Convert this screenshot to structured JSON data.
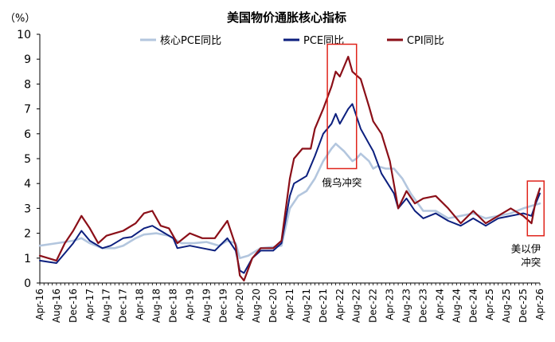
{
  "chart_data": {
    "type": "line",
    "title": "美国物价通胀核心指标",
    "ylabel": "（%）",
    "ylim": [
      0,
      10
    ],
    "yticks": [
      0,
      1,
      2,
      3,
      4,
      5,
      6,
      7,
      8,
      9,
      10
    ],
    "grid": false,
    "legend_position": "top-center",
    "x_start": "2016-04",
    "x_end": "2026-04",
    "xtick_labels": [
      "Apr-16",
      "Aug-16",
      "Dec-16",
      "Apr-17",
      "Aug-17",
      "Dec-17",
      "Apr-18",
      "Aug-18",
      "Dec-18",
      "Apr-19",
      "Aug-19",
      "Dec-19",
      "Apr-20",
      "Aug-20",
      "Dec-20",
      "Apr-21",
      "Aug-21",
      "Dec-21",
      "Apr-22",
      "Aug-22",
      "Dec-22",
      "Apr-23",
      "Aug-23",
      "Dec-23",
      "Apr-24",
      "Aug-24",
      "Dec-24",
      "Apr-25",
      "Aug-25",
      "Dec-25",
      "Apr-26"
    ],
    "series": [
      {
        "name": "核心PCE同比",
        "color": "#b3c6de",
        "width": 2.6,
        "points": [
          [
            "2016-04",
            1.5
          ],
          [
            "2016-08",
            1.6
          ],
          [
            "2016-12",
            1.7
          ],
          [
            "2017-02",
            1.8
          ],
          [
            "2017-04",
            1.6
          ],
          [
            "2017-07",
            1.4
          ],
          [
            "2017-10",
            1.4
          ],
          [
            "2017-12",
            1.5
          ],
          [
            "2018-03",
            1.8
          ],
          [
            "2018-05",
            1.95
          ],
          [
            "2018-08",
            2.0
          ],
          [
            "2018-11",
            1.9
          ],
          [
            "2019-02",
            1.6
          ],
          [
            "2019-05",
            1.6
          ],
          [
            "2019-08",
            1.65
          ],
          [
            "2019-11",
            1.5
          ],
          [
            "2020-01",
            1.7
          ],
          [
            "2020-03",
            1.6
          ],
          [
            "2020-04",
            1.0
          ],
          [
            "2020-06",
            1.1
          ],
          [
            "2020-09",
            1.4
          ],
          [
            "2020-12",
            1.45
          ],
          [
            "2021-02",
            1.5
          ],
          [
            "2021-04",
            3.0
          ],
          [
            "2021-06",
            3.5
          ],
          [
            "2021-08",
            3.7
          ],
          [
            "2021-10",
            4.2
          ],
          [
            "2021-12",
            4.9
          ],
          [
            "2022-02",
            5.4
          ],
          [
            "2022-03",
            5.6
          ],
          [
            "2022-05",
            5.3
          ],
          [
            "2022-07",
            4.9
          ],
          [
            "2022-08",
            5.0
          ],
          [
            "2022-09",
            5.2
          ],
          [
            "2022-11",
            4.9
          ],
          [
            "2022-12",
            4.6
          ],
          [
            "2023-01",
            4.7
          ],
          [
            "2023-03",
            4.6
          ],
          [
            "2023-05",
            4.6
          ],
          [
            "2023-07",
            4.2
          ],
          [
            "2023-09",
            3.6
          ],
          [
            "2023-12",
            2.9
          ],
          [
            "2024-03",
            2.9
          ],
          [
            "2024-06",
            2.6
          ],
          [
            "2024-09",
            2.7
          ],
          [
            "2024-12",
            2.8
          ],
          [
            "2025-03",
            2.6
          ],
          [
            "2025-06",
            2.7
          ],
          [
            "2025-09",
            2.8
          ],
          [
            "2025-12",
            3.0
          ],
          [
            "2026-02",
            3.1
          ],
          [
            "2026-04",
            3.2
          ]
        ]
      },
      {
        "name": "PCE同比",
        "color": "#0c1f7e",
        "width": 2.0,
        "points": [
          [
            "2016-04",
            0.9
          ],
          [
            "2016-06",
            0.85
          ],
          [
            "2016-08",
            0.8
          ],
          [
            "2016-10",
            1.2
          ],
          [
            "2016-12",
            1.6
          ],
          [
            "2017-02",
            2.1
          ],
          [
            "2017-04",
            1.7
          ],
          [
            "2017-07",
            1.4
          ],
          [
            "2017-09",
            1.5
          ],
          [
            "2017-12",
            1.8
          ],
          [
            "2018-02",
            1.85
          ],
          [
            "2018-05",
            2.2
          ],
          [
            "2018-07",
            2.3
          ],
          [
            "2018-09",
            2.1
          ],
          [
            "2018-12",
            1.8
          ],
          [
            "2019-01",
            1.4
          ],
          [
            "2019-04",
            1.5
          ],
          [
            "2019-07",
            1.4
          ],
          [
            "2019-10",
            1.3
          ],
          [
            "2020-01",
            1.8
          ],
          [
            "2020-03",
            1.3
          ],
          [
            "2020-04",
            0.5
          ],
          [
            "2020-05",
            0.4
          ],
          [
            "2020-07",
            1.0
          ],
          [
            "2020-09",
            1.3
          ],
          [
            "2020-12",
            1.3
          ],
          [
            "2021-02",
            1.6
          ],
          [
            "2021-04",
            3.5
          ],
          [
            "2021-05",
            4.0
          ],
          [
            "2021-08",
            4.3
          ],
          [
            "2021-10",
            5.1
          ],
          [
            "2021-12",
            6.0
          ],
          [
            "2022-02",
            6.4
          ],
          [
            "2022-03",
            6.8
          ],
          [
            "2022-04",
            6.4
          ],
          [
            "2022-06",
            7.0
          ],
          [
            "2022-07",
            7.2
          ],
          [
            "2022-09",
            6.2
          ],
          [
            "2022-11",
            5.6
          ],
          [
            "2022-12",
            5.3
          ],
          [
            "2023-02",
            4.4
          ],
          [
            "2023-05",
            3.6
          ],
          [
            "2023-06",
            3.0
          ],
          [
            "2023-08",
            3.4
          ],
          [
            "2023-10",
            2.9
          ],
          [
            "2023-12",
            2.6
          ],
          [
            "2024-03",
            2.8
          ],
          [
            "2024-06",
            2.5
          ],
          [
            "2024-09",
            2.3
          ],
          [
            "2024-12",
            2.6
          ],
          [
            "2025-03",
            2.3
          ],
          [
            "2025-06",
            2.6
          ],
          [
            "2025-09",
            2.7
          ],
          [
            "2025-12",
            2.8
          ],
          [
            "2026-02",
            2.7
          ],
          [
            "2026-03",
            3.2
          ],
          [
            "2026-04",
            3.6
          ]
        ]
      },
      {
        "name": "CPI同比",
        "color": "#8b0f18",
        "width": 2.2,
        "points": [
          [
            "2016-04",
            1.1
          ],
          [
            "2016-06",
            1.0
          ],
          [
            "2016-08",
            0.9
          ],
          [
            "2016-10",
            1.6
          ],
          [
            "2016-12",
            2.1
          ],
          [
            "2017-02",
            2.7
          ],
          [
            "2017-04",
            2.2
          ],
          [
            "2017-06",
            1.6
          ],
          [
            "2017-08",
            1.9
          ],
          [
            "2017-10",
            2.0
          ],
          [
            "2017-12",
            2.1
          ],
          [
            "2018-03",
            2.4
          ],
          [
            "2018-05",
            2.8
          ],
          [
            "2018-07",
            2.9
          ],
          [
            "2018-09",
            2.3
          ],
          [
            "2018-11",
            2.2
          ],
          [
            "2019-01",
            1.6
          ],
          [
            "2019-04",
            2.0
          ],
          [
            "2019-07",
            1.8
          ],
          [
            "2019-10",
            1.8
          ],
          [
            "2020-01",
            2.5
          ],
          [
            "2020-03",
            1.5
          ],
          [
            "2020-04",
            0.3
          ],
          [
            "2020-05",
            0.1
          ],
          [
            "2020-07",
            1.0
          ],
          [
            "2020-09",
            1.4
          ],
          [
            "2020-12",
            1.4
          ],
          [
            "2021-02",
            1.7
          ],
          [
            "2021-04",
            4.2
          ],
          [
            "2021-05",
            5.0
          ],
          [
            "2021-07",
            5.4
          ],
          [
            "2021-09",
            5.4
          ],
          [
            "2021-10",
            6.2
          ],
          [
            "2021-12",
            7.0
          ],
          [
            "2022-02",
            7.9
          ],
          [
            "2022-03",
            8.5
          ],
          [
            "2022-04",
            8.3
          ],
          [
            "2022-06",
            9.1
          ],
          [
            "2022-07",
            8.5
          ],
          [
            "2022-09",
            8.2
          ],
          [
            "2022-11",
            7.1
          ],
          [
            "2022-12",
            6.5
          ],
          [
            "2023-02",
            6.0
          ],
          [
            "2023-04",
            4.9
          ],
          [
            "2023-06",
            3.0
          ],
          [
            "2023-08",
            3.7
          ],
          [
            "2023-10",
            3.2
          ],
          [
            "2023-12",
            3.4
          ],
          [
            "2024-03",
            3.5
          ],
          [
            "2024-06",
            3.0
          ],
          [
            "2024-09",
            2.4
          ],
          [
            "2024-12",
            2.9
          ],
          [
            "2025-03",
            2.4
          ],
          [
            "2025-06",
            2.7
          ],
          [
            "2025-09",
            3.0
          ],
          [
            "2025-12",
            2.7
          ],
          [
            "2026-02",
            2.4
          ],
          [
            "2026-03",
            3.3
          ],
          [
            "2026-04",
            3.8
          ]
        ]
      }
    ],
    "annotations": [
      {
        "text": "俄乌冲突",
        "lines": [
          "俄乌冲突"
        ],
        "box": [
          "2022-01",
          "2022-08",
          4.6,
          9.6
        ]
      },
      {
        "text": "美以伊冲突",
        "lines": [
          "美以伊",
          "冲突"
        ],
        "box": [
          "2026-01",
          "2026-05",
          1.9,
          4.1
        ]
      }
    ]
  }
}
